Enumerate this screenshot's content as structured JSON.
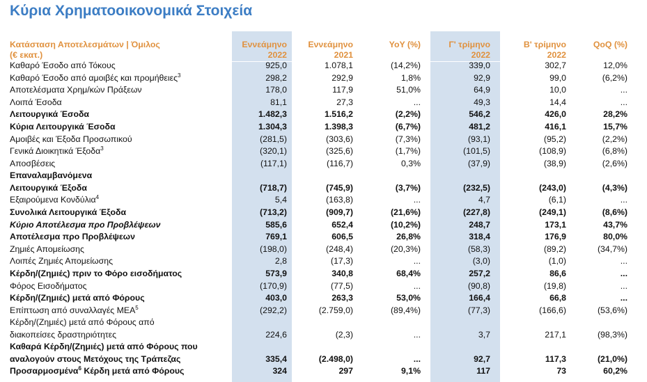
{
  "title": "Κύρια Χρηματοοικονομικά Στοιχεία",
  "headers": {
    "label": "Κατάσταση Αποτελεσμάτων | Όμιλος",
    "label2": "(€ εκατ.)",
    "c1a": "Εννεάμηνο",
    "c1b": "2022",
    "c2a": "Εννεάμηνο",
    "c2b": "2021",
    "c3a": "YoY (%)",
    "c4a": "Γ' τρίμηνο",
    "c4b": "2022",
    "c5a": "Β' τρίμηνο",
    "c5b": "2022",
    "c6a": "QoQ (%)"
  },
  "rows": [
    {
      "label": "Καθαρό Έσοδο από Τόκους",
      "v": [
        "925,0",
        "1.078,1",
        "(14,2%)",
        "339,0",
        "302,7",
        "12,0%"
      ]
    },
    {
      "label": "Καθαρό Έσοδο από αμοιβές και προμήθειες",
      "sup": "3",
      "v": [
        "298,2",
        "292,9",
        "1,8%",
        "92,9",
        "99,0",
        "(6,2%)"
      ]
    },
    {
      "label": "Αποτελέσματα Χρημ/κών Πράξεων",
      "v": [
        "178,0",
        "117,9",
        "51,0%",
        "64,9",
        "10,0",
        "..."
      ]
    },
    {
      "label": "Λοιπά Έσοδα",
      "v": [
        "81,1",
        "27,3",
        "...",
        "49,3",
        "14,4",
        "..."
      ]
    },
    {
      "label": "Λειτουργικά Έσοδα",
      "v": [
        "1.482,3",
        "1.516,2",
        "(2,2%)",
        "546,2",
        "426,0",
        "28,2%"
      ]
    },
    {
      "label": "Κύρια Λειτουργικά Έσοδα",
      "v": [
        "1.304,3",
        "1.398,3",
        "(6,7%)",
        "481,2",
        "416,1",
        "15,7%"
      ]
    },
    {
      "label": "Αμοιβές και Έξοδα Προσωπικού",
      "v": [
        "(281,5)",
        "(303,6)",
        "(7,3%)",
        "(93,1)",
        "(95,2)",
        "(2,2%)"
      ]
    },
    {
      "label": "Γενικά Διοικητικά Έξοδα",
      "sup": "3",
      "v": [
        "(320,1)",
        "(325,6)",
        "(1,7%)",
        "(101,5)",
        "(108,9)",
        "(6,8%)"
      ]
    },
    {
      "label": "Αποσβέσεις",
      "v": [
        "(117,1)",
        "(116,7)",
        "0,3%",
        "(37,9)",
        "(38,9)",
        "(2,6%)"
      ]
    },
    {
      "label": "Επαναλαμβανόμενα",
      "label2": "Λειτουργικά Έξοδα",
      "v": [
        "(718,7)",
        "(745,9)",
        "(3,7%)",
        "(232,5)",
        "(243,0)",
        "(4,3%)"
      ]
    },
    {
      "label": "Εξαιρούμενα Κονδύλια",
      "sup": "4",
      "v": [
        "5,4",
        "(163,8)",
        "...",
        "4,7",
        "(6,1)",
        "..."
      ]
    },
    {
      "label": "Συνολικά Λειτουργικά Έξοδα",
      "v": [
        "(713,2)",
        "(909,7)",
        "(21,6%)",
        "(227,8)",
        "(249,1)",
        "(8,6%)"
      ]
    },
    {
      "label": "Κύριο Αποτέλεσμα προ Προβλέψεων",
      "v": [
        "585,6",
        "652,4",
        "(10,2%)",
        "248,7",
        "173,1",
        "43,7%"
      ]
    },
    {
      "label": "Αποτέλεσμα προ Προβλέψεων",
      "v": [
        "769,1",
        "606,5",
        "26,8%",
        "318,4",
        "176,9",
        "80,0%"
      ]
    },
    {
      "label": "Ζημιές Απομείωσης",
      "v": [
        "(198,0)",
        "(248,4)",
        "(20,3%)",
        "(58,3)",
        "(89,2)",
        "(34,7%)"
      ]
    },
    {
      "label": "Λοιπές Ζημιές Απομείωσης",
      "v": [
        "2,8",
        "(17,3)",
        "...",
        "(3,0)",
        "(1,0)",
        "..."
      ]
    },
    {
      "label": "Κέρδη/(Ζημιές) πριν το Φόρο εισοδήματος",
      "v": [
        "573,9",
        "340,8",
        "68,4%",
        "257,2",
        "86,6",
        "..."
      ]
    },
    {
      "label": "Φόρος Εισοδήματος",
      "v": [
        "(170,9)",
        "(77,5)",
        "...",
        "(90,8)",
        "(19,8)",
        "..."
      ]
    },
    {
      "label": "Κέρδη/(Ζημιές) μετά από Φόρους",
      "v": [
        "403,0",
        "263,3",
        "53,0%",
        "166,4",
        "66,8",
        "..."
      ]
    },
    {
      "label": "Επίπτωση από συναλλαγές ΜΕΑ",
      "sup": "5",
      "v": [
        "(292,2)",
        "(2.759,0)",
        "(89,4%)",
        "(77,3)",
        "(166,6)",
        "(53,6%)"
      ]
    },
    {
      "label": "Κέρδη/(Ζημιές) μετά από Φόρους από",
      "label2": "διακοπείσες δραστηριότητες",
      "v": [
        "224,6",
        "(2,3)",
        "...",
        "3,7",
        "217,1",
        "(98,3%)"
      ]
    },
    {
      "label": "Καθαρά Κέρδη/(Ζημιές) μετά από Φόρους που",
      "label2": "αναλογούν στους Μετόχους της Τράπεζας",
      "v": [
        "335,4",
        "(2.498,0)",
        "...",
        "92,7",
        "117,3",
        "(21,0%)"
      ]
    },
    {
      "label": "Προσαρμοσμένα",
      "sup": "6",
      "label_rest": " Κέρδη μετά από Φόρους",
      "v": [
        "324",
        "297",
        "9,1%",
        "117",
        "73",
        "60,2%"
      ]
    }
  ]
}
